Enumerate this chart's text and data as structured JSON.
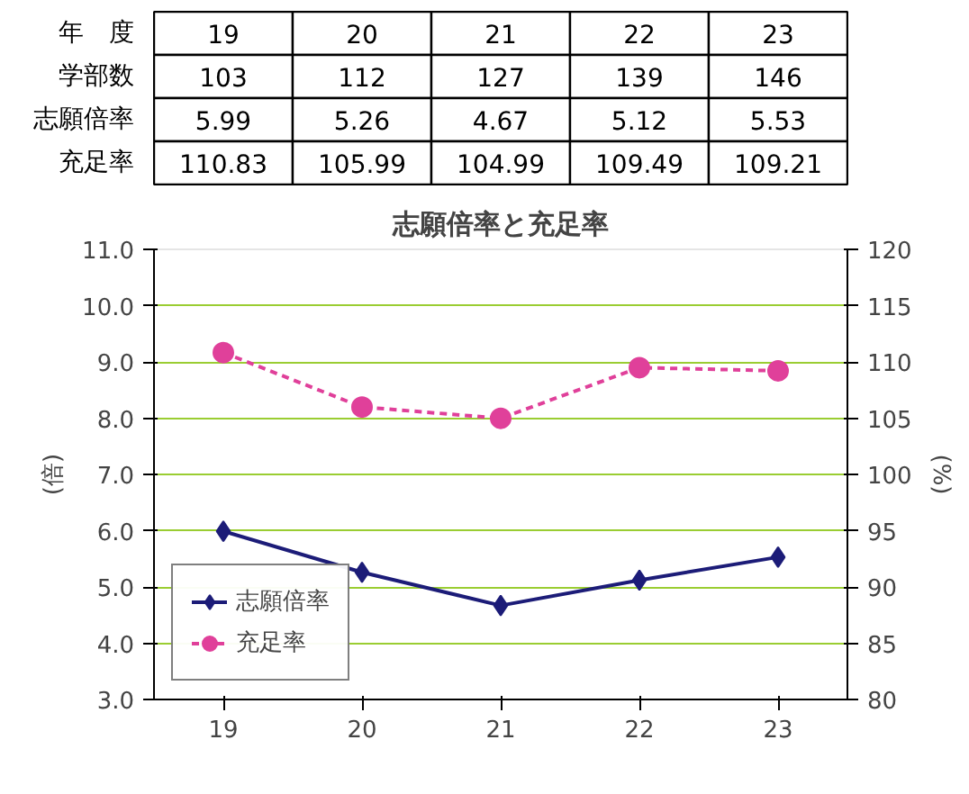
{
  "chart_data": {
    "type": "line",
    "title": "志願倍率と充足率",
    "ylabel": "(倍)",
    "y2label": "(%)",
    "categories": [
      "19",
      "20",
      "21",
      "22",
      "23"
    ],
    "series": [
      {
        "name": "志願倍率",
        "color": "#1c1c78",
        "values": [
          5.99,
          5.26,
          4.67,
          5.12,
          5.53
        ],
        "value_labels": [
          "5.99",
          "5.26",
          "4.67",
          "5.12",
          "5.53"
        ],
        "marker": "diamond",
        "line_style": "solid"
      },
      {
        "name": "充足率",
        "color": "#e0409a",
        "values": [
          110.83,
          105.99,
          104.99,
          109.49,
          109.21
        ],
        "value_labels": [
          "110.83",
          "105.99",
          "104.99",
          "109.49",
          "109.21"
        ],
        "marker": "circle",
        "line_style": "dashed",
        "axis": "y2"
      }
    ],
    "ylim": [
      3,
      11
    ],
    "yticks": [
      {
        "value": 3,
        "label": "3.0"
      },
      {
        "value": 4,
        "label": "4.0"
      },
      {
        "value": 5,
        "label": "5.0"
      },
      {
        "value": 6,
        "label": "6.0"
      },
      {
        "value": 7,
        "label": "7.0"
      },
      {
        "value": 8,
        "label": "8.0"
      },
      {
        "value": 9,
        "label": "9.0"
      },
      {
        "value": 10,
        "label": "10.0"
      },
      {
        "value": 11,
        "label": "11.0"
      }
    ],
    "y2lim": [
      80,
      120
    ],
    "y2ticks": [
      80,
      85,
      90,
      95,
      100,
      105,
      110,
      115,
      120
    ],
    "grid": "y",
    "legend": "bottom left",
    "annotations": [
      "年　度",
      "学部数",
      "103",
      "112",
      "127",
      "139",
      "146"
    ]
  }
}
